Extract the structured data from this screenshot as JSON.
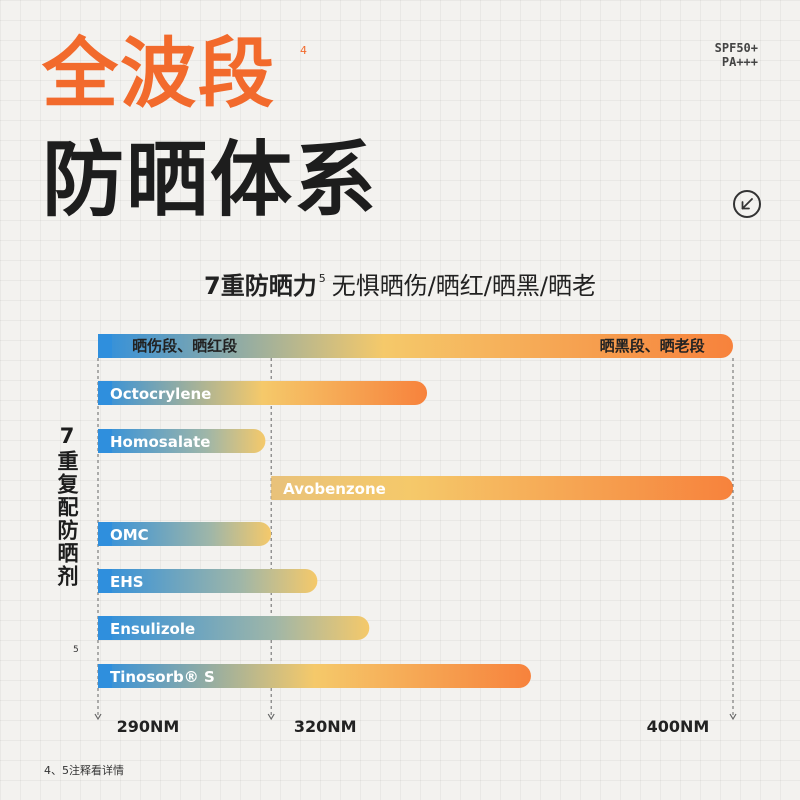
{
  "header": {
    "title_line1": "全波段",
    "title_sup": "4",
    "title_line2": "防晒体系",
    "spf_line1": "SPF50+",
    "spf_line2": "PA+++",
    "arrow_icon": "arrow-down-left-icon"
  },
  "subtitle": {
    "bold": "7重防晒力",
    "sup": "5",
    "rest": "无惧晒伤/晒红/晒黑/晒老"
  },
  "chart_data": {
    "type": "bar",
    "orientation": "horizontal-range",
    "x_unit": "NM",
    "x_ticks": [
      {
        "value": 290,
        "label": "290NM"
      },
      {
        "value": 320,
        "label": "320NM"
      },
      {
        "value": 400,
        "label": "400NM"
      }
    ],
    "band": {
      "start": 290,
      "end": 400,
      "labels": [
        {
          "text": "晒伤段、晒红段",
          "from": 290,
          "to": 320
        },
        {
          "text": "晒黑段、晒老段",
          "from": 320,
          "to": 400
        }
      ]
    },
    "ylabel": "7重复配防晒剂",
    "ylabel_sup": "5",
    "series": [
      {
        "name": "Octocrylene",
        "start": 290,
        "end": 347
      },
      {
        "name": "Homosalate",
        "start": 290,
        "end": 319
      },
      {
        "name": "Avobenzone",
        "start": 320,
        "end": 400
      },
      {
        "name": "OMC",
        "start": 290,
        "end": 320
      },
      {
        "name": "EHS",
        "start": 290,
        "end": 328
      },
      {
        "name": "Ensulizole",
        "start": 290,
        "end": 337
      },
      {
        "name": "Tinosorb® S",
        "start": 290,
        "end": 365
      }
    ],
    "colors": {
      "start": "#2f8fdd",
      "mid": "#f5c96a",
      "end": "#f7823c"
    }
  },
  "footnote": "4、5注释看详情"
}
